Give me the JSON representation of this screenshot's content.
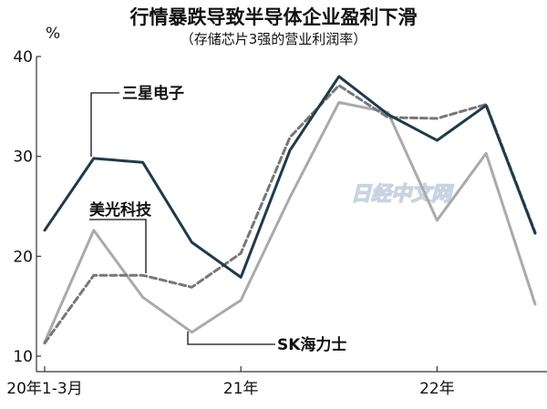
{
  "chart_data": {
    "type": "line",
    "title": "行情暴跌导致半导体企业盈利下滑",
    "subtitle": "（存储芯片3强的营业利润率）",
    "ylabel": "%",
    "ylim": [
      10,
      40
    ],
    "yticks": [
      10,
      20,
      30,
      40
    ],
    "xtick_labels": [
      "20年1-3月",
      "21年",
      "22年"
    ],
    "quarters": [
      "2020Q1",
      "2020Q2",
      "2020Q3",
      "2020Q4",
      "2021Q1",
      "2021Q2",
      "2021Q3",
      "2021Q4",
      "2022Q1",
      "2022Q2",
      "2022Q3"
    ],
    "series": [
      {
        "name": "三星电子",
        "color": "#1f3a4a",
        "style": "solid",
        "values": [
          22.6,
          29.8,
          29.4,
          21.4,
          17.9,
          30.6,
          38.0,
          34.2,
          31.6,
          35.1,
          22.3
        ]
      },
      {
        "name": "美光科技",
        "color": "#777777",
        "style": "dashed",
        "values": [
          11.3,
          18.1,
          18.1,
          16.9,
          20.3,
          31.9,
          37.1,
          33.9,
          33.8,
          35.2,
          22.4
        ]
      },
      {
        "name": "SK海力士",
        "color": "#aaaaaa",
        "style": "solid",
        "values": [
          11.4,
          22.6,
          15.9,
          12.4,
          15.6,
          25.9,
          35.4,
          34.4,
          23.6,
          30.3,
          15.2
        ]
      }
    ],
    "grid": false,
    "legend": "inline labels"
  },
  "watermark": "日经中文网"
}
